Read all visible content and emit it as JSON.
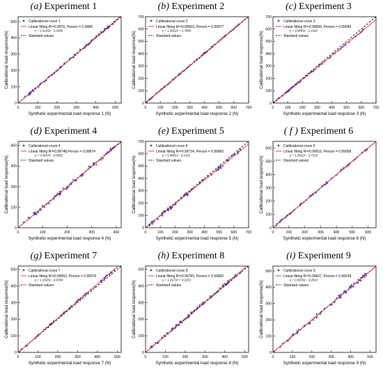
{
  "figure": {
    "panels": [
      {
        "letter": "(a)",
        "title": "Experiment 1"
      },
      {
        "letter": "(b)",
        "title": "Experiment 2"
      },
      {
        "letter": "(c)",
        "title": "Experiment 3"
      },
      {
        "letter": "(d)",
        "title": "Experiment 4"
      },
      {
        "letter": "(e)",
        "title": "Experiment 5"
      },
      {
        "letter": "( f )",
        "title": "Experiment 6"
      },
      {
        "letter": "(g)",
        "title": "Experiment 7"
      },
      {
        "letter": "(h)",
        "title": "Experiment 8"
      },
      {
        "letter": "(i)",
        "title": "Experiment 9"
      }
    ]
  },
  "colors": {
    "scatter": "#3b3bd4",
    "fit": "#e8242a",
    "standard": "#000000"
  },
  "chart_data": [
    {
      "type": "scatter",
      "title": "Experiment 1",
      "xlabel": "Synthetic experimental load response 1 (N)",
      "ylabel": "Calibrational load response(N)",
      "xlim": [
        0,
        530
      ],
      "ylim": [
        0,
        530
      ],
      "xticks": [
        0,
        100,
        200,
        300,
        400,
        500
      ],
      "yticks": [
        0,
        100,
        200,
        300,
        400,
        500
      ],
      "legend": [
        "Calibrational cruve 1",
        "Linear fitting R²=0.9976, Person = 0.9988",
        "Standard values"
      ],
      "equation": "y = 1.0103x - 0.2360",
      "slope": 1.0103,
      "intercept": -0.236,
      "xmax": 500,
      "scatter_amp": 8
    },
    {
      "type": "scatter",
      "title": "Experiment 2",
      "xlabel": "Synthetic experimental load response 2 (N)",
      "ylabel": "Calibrational load response(N)",
      "xlim": [
        0,
        700
      ],
      "ylim": [
        0,
        700
      ],
      "xticks": [
        0,
        100,
        200,
        300,
        400,
        500,
        600,
        700
      ],
      "yticks": [
        0,
        100,
        200,
        300,
        400,
        500,
        600,
        700
      ],
      "legend": [
        "Calibrational cruve 2",
        "Linear fitting R²=0.99953, Person = 0.99977",
        "Standard values"
      ],
      "equation": "y = 1.0022x + 2.7980",
      "slope": 1.0022,
      "intercept": 2.798,
      "xmax": 650,
      "scatter_amp": 4
    },
    {
      "type": "scatter",
      "title": "Experiment 3",
      "xlabel": "Synthetic experimental load response 3 (N)",
      "ylabel": "Calibrational load response(N)",
      "xlim": [
        0,
        700
      ],
      "ylim": [
        0,
        700
      ],
      "xticks": [
        0,
        100,
        200,
        300,
        400,
        500,
        600,
        700
      ],
      "yticks": [
        0,
        100,
        200,
        300,
        400,
        500,
        600,
        700
      ],
      "legend": [
        "Calibrational cruve 3",
        "Linear fitting R²=0.99899, Person = 0.99949",
        "Standard values"
      ],
      "equation": "y = 0.9693x - 2.1022",
      "slope": 0.9693,
      "intercept": -2.1022,
      "xmax": 620,
      "scatter_amp": 6
    },
    {
      "type": "scatter",
      "title": "Experiment 4",
      "xlabel": "Synthetic experimental load response 4 (N)",
      "ylabel": "Calibrational load response(N)",
      "xlim": [
        0,
        420
      ],
      "ylim": [
        0,
        420
      ],
      "xticks": [
        0,
        100,
        200,
        300,
        400
      ],
      "yticks": [
        0,
        100,
        200,
        300,
        400
      ],
      "legend": [
        "Calibrational cruve 4",
        "Linear fitting R²=0.99748,Person = 0.99874",
        "Standard values"
      ],
      "equation": "y = 0.9937x - 0.0952",
      "slope": 0.9937,
      "intercept": -0.0952,
      "xmax": 400,
      "scatter_amp": 10
    },
    {
      "type": "scatter",
      "title": "Experiment 5",
      "xlabel": "Synthetic experimental load response 5 (N)",
      "ylabel": "Calibrational load response(N)",
      "xlim": [
        0,
        700
      ],
      "ylim": [
        0,
        700
      ],
      "xticks": [
        0,
        100,
        200,
        300,
        400,
        500,
        600,
        700
      ],
      "yticks": [
        0,
        100,
        200,
        300,
        400,
        500,
        600,
        700
      ],
      "legend": [
        "Calibrational cruve 5",
        "Linear fitting R²=0.99724, Person = 0.99862",
        "Standard values"
      ],
      "equation": "y = 0.9681x - 0.1422",
      "slope": 0.9681,
      "intercept": -0.1422,
      "xmax": 650,
      "scatter_amp": 14
    },
    {
      "type": "scatter",
      "title": "Experiment 6",
      "xlabel": "Synthetic experimental load response 6 (N)",
      "ylabel": "Calibrational load response(N)",
      "xlim": [
        0,
        650
      ],
      "ylim": [
        0,
        650
      ],
      "xticks": [
        0,
        100,
        200,
        300,
        400,
        500,
        600
      ],
      "yticks": [
        0,
        100,
        200,
        300,
        400,
        500,
        600
      ],
      "legend": [
        "Calibrational cruve 6",
        "Linear fitting R²=0.99916, Person = 0.99958",
        "Standard values"
      ],
      "equation": "y = 1.0012x - 0.7319",
      "slope": 1.0012,
      "intercept": -0.7319,
      "xmax": 600,
      "scatter_amp": 7
    },
    {
      "type": "scatter",
      "title": "Experiment 7",
      "xlabel": "Synthetic experimental load response 7 (N)",
      "ylabel": "Calibrational load response(N)",
      "xlim": [
        0,
        520
      ],
      "ylim": [
        0,
        520
      ],
      "xticks": [
        0,
        100,
        200,
        300,
        400,
        500
      ],
      "yticks": [
        0,
        100,
        200,
        300,
        400,
        500
      ],
      "legend": [
        "Calibrational cruve 7",
        "Linear fitting R²=0.99953, Person = 0.99976",
        "Standard values"
      ],
      "equation": "y = 1.0316x - 0.9784",
      "slope": 1.0316,
      "intercept": -0.9784,
      "xmax": 490,
      "scatter_amp": 5
    },
    {
      "type": "scatter",
      "title": "Experiment 8",
      "xlabel": "Synthetic experimental load response 8 (N)",
      "ylabel": "Calibrational load response(N)",
      "xlim": [
        0,
        520
      ],
      "ylim": [
        0,
        520
      ],
      "xticks": [
        0,
        100,
        200,
        300,
        400,
        500
      ],
      "yticks": [
        0,
        100,
        200,
        300,
        400,
        500
      ],
      "legend": [
        "Calibrational cruve 8",
        "Linear fitting R²=0.99783, Person = 0.99892",
        "Standard values"
      ],
      "equation": "y = 1.0173x + 0.2201",
      "slope": 1.0173,
      "intercept": 0.2201,
      "xmax": 500,
      "scatter_amp": 9
    },
    {
      "type": "scatter",
      "title": "Experiment 9",
      "xlabel": "Synthetic experimental load response 9 (N)",
      "ylabel": "Calibrational load response(N)",
      "xlim": [
        0,
        530
      ],
      "ylim": [
        0,
        530
      ],
      "xticks": [
        0,
        100,
        200,
        300,
        400,
        500
      ],
      "yticks": [
        0,
        100,
        200,
        300,
        400,
        500
      ],
      "legend": [
        "Calibrational cruve 9",
        "Linear fitting R²=0.99837, Person = 0.99918",
        "Standard values"
      ],
      "equation": "y = 0.9976x - 0.2814",
      "slope": 0.9976,
      "intercept": -0.2814,
      "xmax": 500,
      "scatter_amp": 12
    }
  ]
}
